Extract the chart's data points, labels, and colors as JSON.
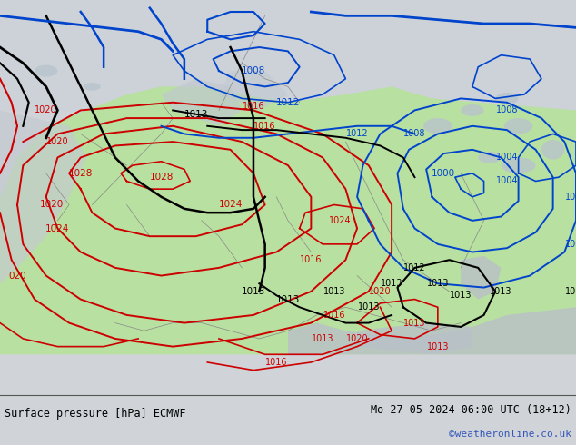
{
  "title_left": "Surface pressure [hPa] ECMWF",
  "title_right": "Mo 27-05-2024 06:00 UTC (18+12)",
  "watermark": "©weatheronline.co.uk",
  "bg_color_top": "#d0d4d8",
  "land_green": "#b8e0a0",
  "sea_grey": "#c8ccd0",
  "bottom_bar": "#d8d8d8",
  "watermark_color": "#3355bb",
  "figsize": [
    6.34,
    4.9
  ],
  "dpi": 100,
  "red_color": "#cc0000",
  "blue_color": "#0044cc",
  "black_color": "#000000"
}
